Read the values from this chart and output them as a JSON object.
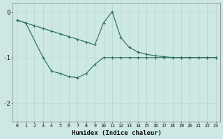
{
  "xlabel": "Humidex (Indice chaleur)",
  "bg_color": "#cde8e4",
  "line_color": "#2d6e62",
  "grid_color": "#b8d8d2",
  "xlim": [
    -0.5,
    23.5
  ],
  "ylim": [
    -2.4,
    0.2
  ],
  "yticks": [
    0,
    -1,
    -2
  ],
  "xticks": [
    0,
    1,
    2,
    3,
    4,
    5,
    6,
    7,
    8,
    9,
    10,
    11,
    12,
    13,
    14,
    15,
    16,
    17,
    18,
    19,
    20,
    21,
    22,
    23
  ],
  "series1_x": [
    0,
    1,
    2,
    3,
    4,
    5,
    6,
    7,
    8,
    9,
    10,
    11,
    12,
    13,
    14,
    15,
    16,
    17,
    18,
    19,
    20,
    21,
    22,
    23
  ],
  "series1_y": [
    -0.18,
    -0.24,
    -0.3,
    -0.36,
    -0.42,
    -0.48,
    -0.54,
    -0.6,
    -0.66,
    -0.72,
    -0.24,
    0.01,
    -0.56,
    -0.78,
    -0.88,
    -0.93,
    -0.96,
    -0.98,
    -1.0,
    -1.0,
    -1.0,
    -1.0,
    -1.0,
    -1.0
  ],
  "series2_x": [
    0,
    1,
    3,
    4,
    5,
    6,
    7,
    8,
    9,
    10,
    11,
    12,
    13,
    14,
    15,
    16,
    17,
    18,
    19,
    20,
    21,
    22,
    23
  ],
  "series2_y": [
    -0.18,
    -0.24,
    -1.0,
    -1.3,
    -1.35,
    -1.42,
    -1.44,
    -1.35,
    -1.15,
    -1.0,
    -1.0,
    -1.0,
    -1.0,
    -1.0,
    -1.0,
    -1.0,
    -1.0,
    -1.0,
    -1.0,
    -1.0,
    -1.0,
    -1.0,
    -1.0
  ]
}
